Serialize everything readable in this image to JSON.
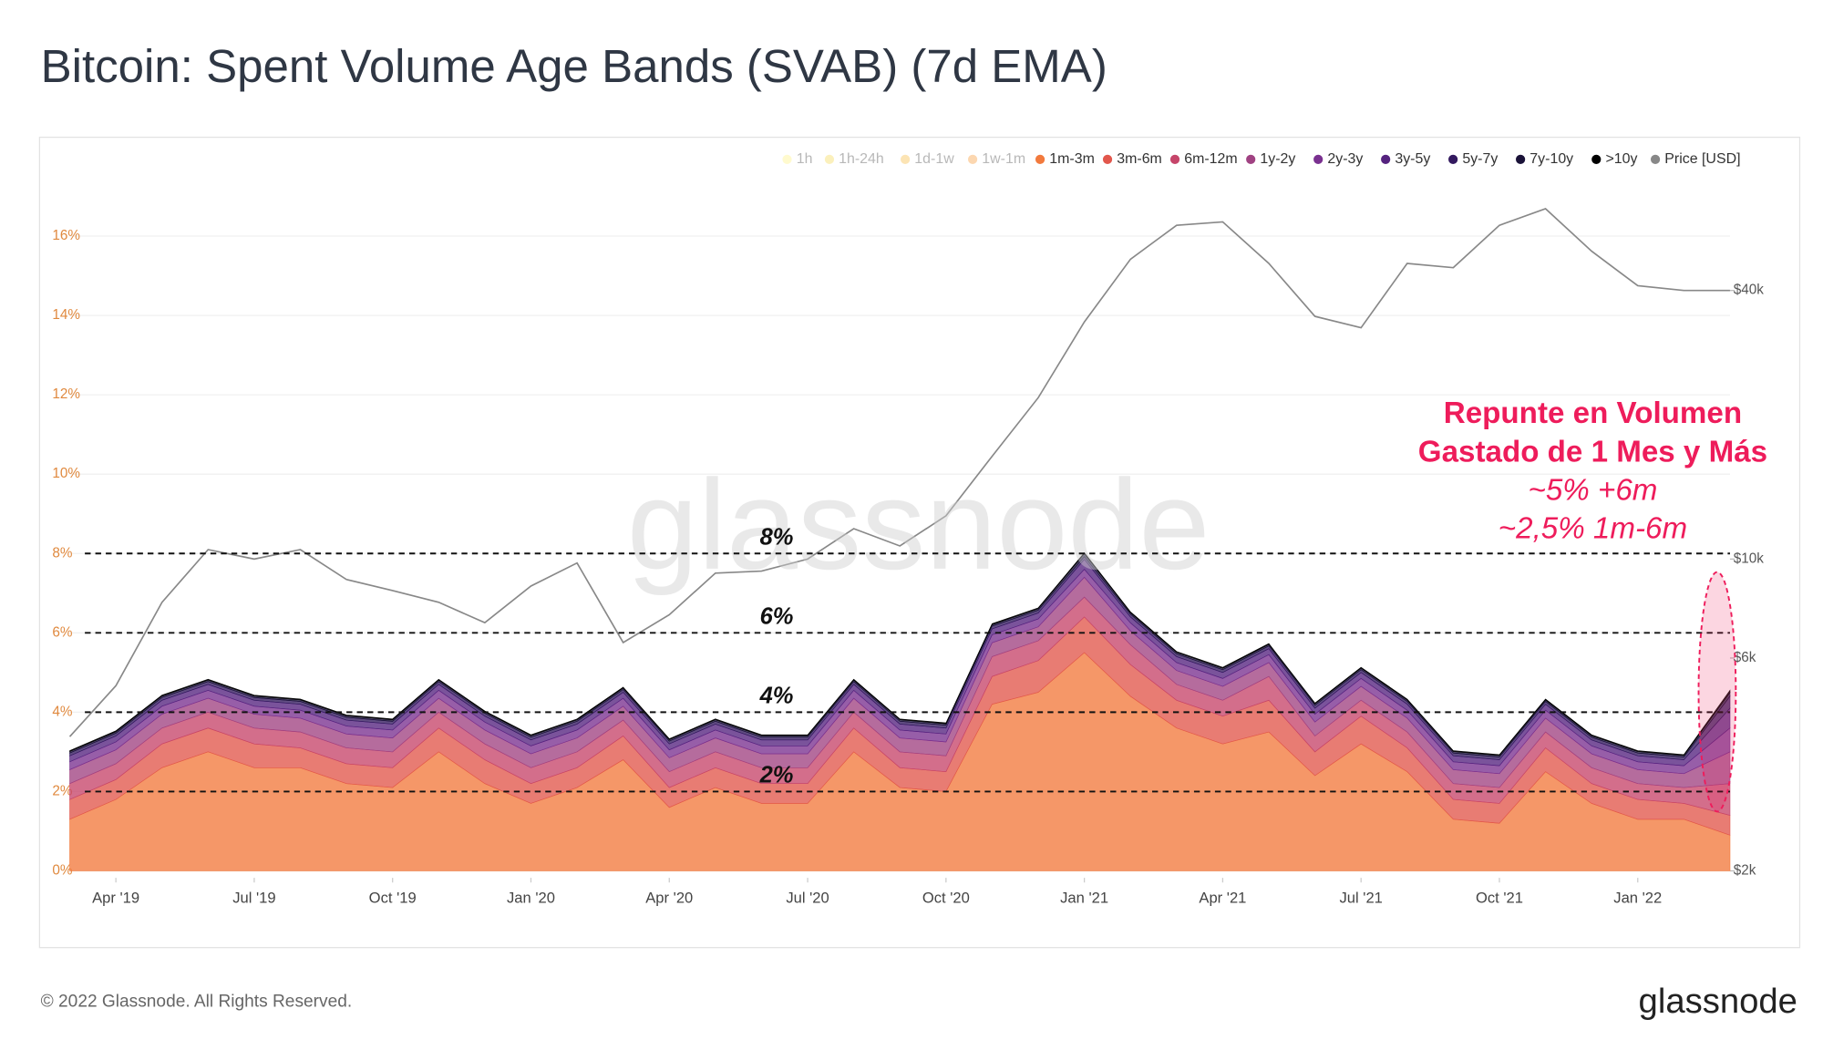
{
  "chart_data": {
    "type": "stacked_area",
    "title": "Bitcoin: Spent Volume Age Bands (SVAB) (7d EMA)",
    "watermark": "glassnode",
    "x": [
      "2019-03",
      "2019-04",
      "2019-05",
      "2019-06",
      "2019-07",
      "2019-08",
      "2019-09",
      "2019-10",
      "2019-11",
      "2019-12",
      "2020-01",
      "2020-02",
      "2020-03",
      "2020-04",
      "2020-05",
      "2020-06",
      "2020-07",
      "2020-08",
      "2020-09",
      "2020-10",
      "2020-11",
      "2020-12",
      "2021-01",
      "2021-02",
      "2021-03",
      "2021-04",
      "2021-05",
      "2021-06",
      "2021-07",
      "2021-08",
      "2021-09",
      "2021-10",
      "2021-11",
      "2021-12",
      "2022-01",
      "2022-02",
      "2022-03"
    ],
    "xlim": [
      "2019-03",
      "2022-03"
    ],
    "xticks": [
      {
        "value": "2019-04",
        "label": "Apr '19"
      },
      {
        "value": "2019-07",
        "label": "Jul '19"
      },
      {
        "value": "2019-10",
        "label": "Oct '19"
      },
      {
        "value": "2020-01",
        "label": "Jan '20"
      },
      {
        "value": "2020-04",
        "label": "Apr '20"
      },
      {
        "value": "2020-07",
        "label": "Jul '20"
      },
      {
        "value": "2020-10",
        "label": "Oct '20"
      },
      {
        "value": "2021-01",
        "label": "Jan '21"
      },
      {
        "value": "2021-04",
        "label": "Apr '21"
      },
      {
        "value": "2021-07",
        "label": "Jul '21"
      },
      {
        "value": "2021-10",
        "label": "Oct '21"
      },
      {
        "value": "2022-01",
        "label": "Jan '22"
      }
    ],
    "ylim": [
      0,
      17
    ],
    "yticks": [
      {
        "value": 0,
        "label": "0%"
      },
      {
        "value": 2,
        "label": "2%"
      },
      {
        "value": 4,
        "label": "4%"
      },
      {
        "value": 6,
        "label": "6%"
      },
      {
        "value": 8,
        "label": "8%"
      },
      {
        "value": 10,
        "label": "10%"
      },
      {
        "value": 12,
        "label": "12%"
      },
      {
        "value": 14,
        "label": "14%"
      },
      {
        "value": 16,
        "label": "16%"
      }
    ],
    "y2lim": [
      2000,
      65000
    ],
    "y2scale": "log",
    "y2ticks": [
      {
        "value": 2000,
        "label": "$2k"
      },
      {
        "value": 6000,
        "label": "$6k"
      },
      {
        "value": 10000,
        "label": "$10k"
      },
      {
        "value": 40000,
        "label": "$40k"
      }
    ],
    "grid": true,
    "legend": "top-right",
    "reference_lines": [
      {
        "value": 8,
        "label": "8%"
      },
      {
        "value": 6,
        "label": "6%"
      },
      {
        "value": 4,
        "label": "4%"
      },
      {
        "value": 2,
        "label": "2%"
      }
    ],
    "annotation": {
      "color": "#ee1c5b",
      "lines": [
        "Repunte en Volumen",
        "Gastado de 1 Mes y Más",
        "~5% +6m",
        "~2,5% 1m-6m"
      ]
    },
    "series": [
      {
        "name": "1h",
        "color": "#fff176",
        "hidden": true
      },
      {
        "name": "1h-24h",
        "color": "#f5d742",
        "hidden": true
      },
      {
        "name": "1d-1w",
        "color": "#f7b32b",
        "hidden": true
      },
      {
        "name": "1w-1m",
        "color": "#f8901f",
        "hidden": true
      },
      {
        "name": "1m-3m",
        "color": "#f27a3d",
        "values": [
          1.3,
          1.8,
          2.6,
          3.0,
          2.6,
          2.6,
          2.2,
          2.1,
          3.0,
          2.2,
          1.7,
          2.1,
          2.8,
          1.6,
          2.1,
          1.7,
          1.7,
          3.0,
          2.1,
          2.0,
          4.2,
          4.5,
          5.5,
          4.4,
          3.6,
          3.2,
          3.5,
          2.4,
          3.2,
          2.5,
          1.3,
          1.2,
          2.5,
          1.7,
          1.3,
          1.3,
          0.9
        ]
      },
      {
        "name": "3m-6m",
        "color": "#e2574c",
        "values": [
          0.5,
          0.5,
          0.6,
          0.6,
          0.6,
          0.5,
          0.5,
          0.5,
          0.6,
          0.6,
          0.5,
          0.5,
          0.6,
          0.5,
          0.5,
          0.5,
          0.5,
          0.6,
          0.5,
          0.5,
          0.7,
          0.8,
          0.9,
          0.8,
          0.7,
          0.7,
          0.8,
          0.6,
          0.7,
          0.6,
          0.5,
          0.5,
          0.6,
          0.5,
          0.5,
          0.4,
          0.5
        ]
      },
      {
        "name": "6m-12m",
        "color": "#c6456a",
        "values": [
          0.4,
          0.4,
          0.4,
          0.4,
          0.4,
          0.4,
          0.4,
          0.4,
          0.4,
          0.4,
          0.4,
          0.4,
          0.4,
          0.4,
          0.4,
          0.4,
          0.4,
          0.4,
          0.4,
          0.4,
          0.5,
          0.5,
          0.5,
          0.5,
          0.4,
          0.4,
          0.6,
          0.4,
          0.4,
          0.4,
          0.4,
          0.4,
          0.4,
          0.4,
          0.4,
          0.4,
          0.8
        ]
      },
      {
        "name": "1y-2y",
        "color": "#a04282",
        "values": [
          0.35,
          0.35,
          0.35,
          0.35,
          0.35,
          0.35,
          0.35,
          0.35,
          0.35,
          0.35,
          0.35,
          0.35,
          0.35,
          0.35,
          0.35,
          0.35,
          0.35,
          0.35,
          0.35,
          0.35,
          0.35,
          0.35,
          0.5,
          0.35,
          0.35,
          0.35,
          0.35,
          0.35,
          0.35,
          0.35,
          0.35,
          0.35,
          0.35,
          0.35,
          0.35,
          0.35,
          0.8
        ]
      },
      {
        "name": "2y-3y",
        "color": "#7a3190",
        "values": [
          0.2,
          0.2,
          0.2,
          0.2,
          0.2,
          0.2,
          0.2,
          0.2,
          0.2,
          0.2,
          0.2,
          0.2,
          0.2,
          0.2,
          0.2,
          0.2,
          0.2,
          0.2,
          0.2,
          0.2,
          0.2,
          0.2,
          0.2,
          0.2,
          0.2,
          0.2,
          0.2,
          0.2,
          0.2,
          0.2,
          0.2,
          0.2,
          0.2,
          0.2,
          0.2,
          0.2,
          0.6
        ]
      },
      {
        "name": "3y-5y",
        "color": "#55237f",
        "values": [
          0.15,
          0.15,
          0.15,
          0.15,
          0.15,
          0.15,
          0.15,
          0.15,
          0.15,
          0.15,
          0.15,
          0.15,
          0.15,
          0.15,
          0.15,
          0.15,
          0.15,
          0.15,
          0.15,
          0.15,
          0.15,
          0.15,
          0.25,
          0.15,
          0.15,
          0.15,
          0.15,
          0.15,
          0.15,
          0.15,
          0.15,
          0.15,
          0.15,
          0.15,
          0.15,
          0.15,
          0.5
        ]
      },
      {
        "name": "5y-7y",
        "color": "#33195f",
        "values": [
          0.07,
          0.07,
          0.07,
          0.07,
          0.07,
          0.07,
          0.07,
          0.07,
          0.07,
          0.07,
          0.07,
          0.07,
          0.07,
          0.07,
          0.07,
          0.07,
          0.07,
          0.07,
          0.07,
          0.07,
          0.07,
          0.07,
          0.07,
          0.07,
          0.07,
          0.07,
          0.07,
          0.07,
          0.07,
          0.07,
          0.07,
          0.07,
          0.07,
          0.07,
          0.07,
          0.07,
          0.3
        ]
      },
      {
        "name": "7y-10y",
        "color": "#1a1238",
        "values": [
          0.04,
          0.04,
          0.04,
          0.04,
          0.04,
          0.04,
          0.04,
          0.04,
          0.04,
          0.04,
          0.04,
          0.04,
          0.04,
          0.04,
          0.04,
          0.04,
          0.04,
          0.04,
          0.04,
          0.04,
          0.04,
          0.04,
          0.08,
          0.04,
          0.04,
          0.04,
          0.04,
          0.04,
          0.04,
          0.04,
          0.04,
          0.04,
          0.04,
          0.04,
          0.04,
          0.04,
          0.1
        ]
      },
      {
        "name": ">10y",
        "color": "#000000",
        "values": [
          0.02,
          0.02,
          0.02,
          0.02,
          0.02,
          0.02,
          0.02,
          0.02,
          0.02,
          0.02,
          0.02,
          0.02,
          0.02,
          0.02,
          0.02,
          0.02,
          0.02,
          0.02,
          0.02,
          0.02,
          0.02,
          0.02,
          0.02,
          0.02,
          0.02,
          0.02,
          0.02,
          0.02,
          0.02,
          0.02,
          0.02,
          0.02,
          0.02,
          0.02,
          0.02,
          0.02,
          0.05
        ]
      },
      {
        "name": "Price [USD]",
        "color": "#888888",
        "axis": "y2",
        "line": true,
        "values": [
          4000,
          5200,
          8000,
          10500,
          10000,
          10500,
          9000,
          8500,
          8000,
          7200,
          8700,
          9800,
          6500,
          7500,
          9300,
          9400,
          10000,
          11700,
          10700,
          12500,
          17000,
          23000,
          34000,
          47000,
          56000,
          57000,
          46000,
          35000,
          33000,
          46000,
          45000,
          56000,
          61000,
          49000,
          41000,
          40000,
          40000
        ]
      }
    ]
  },
  "footer": {
    "copyright": "© 2022 Glassnode. All Rights Reserved.",
    "logo": "glassnode"
  }
}
